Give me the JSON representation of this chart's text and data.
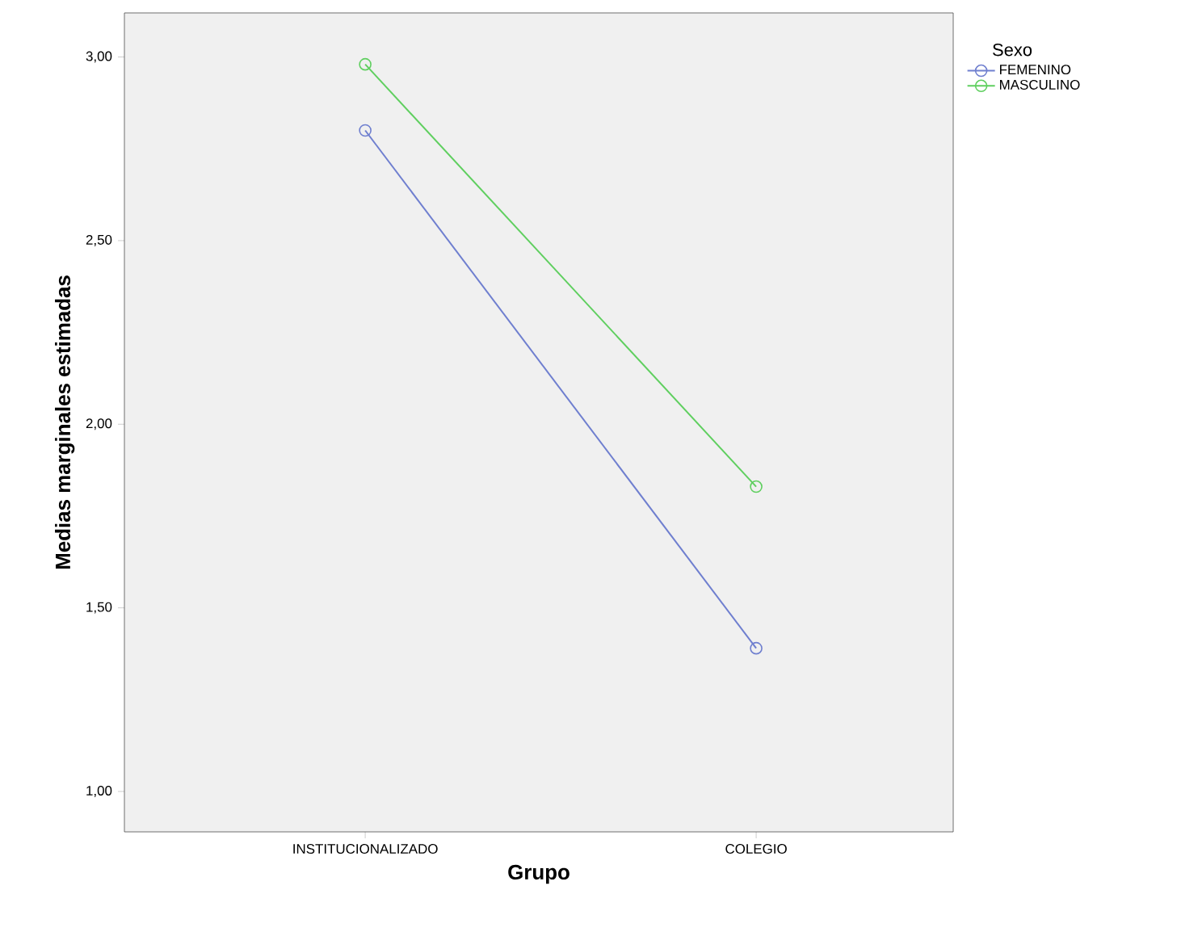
{
  "chart_data": {
    "type": "line",
    "xlabel": "Grupo",
    "ylabel": "Medias marginales estimadas",
    "legend_title": "Sexo",
    "categories": [
      "INSTITUCIONALIZADO",
      "COLEGIO"
    ],
    "series": [
      {
        "name": "FEMENINO",
        "color": "#6f7fcf",
        "values": [
          2.8,
          1.39
        ]
      },
      {
        "name": "MASCULINO",
        "color": "#5fcf5f",
        "values": [
          2.98,
          1.83
        ]
      }
    ],
    "ylim": [
      0.89,
      3.12
    ],
    "yticks": [
      {
        "value": 1.0,
        "label": "1,00"
      },
      {
        "value": 1.5,
        "label": "1,50"
      },
      {
        "value": 2.0,
        "label": "2,00"
      },
      {
        "value": 2.5,
        "label": "2,50"
      },
      {
        "value": 3.0,
        "label": "3,00"
      }
    ],
    "marker": "circle",
    "line_style": "solid",
    "legend": "top right",
    "grid": false
  }
}
